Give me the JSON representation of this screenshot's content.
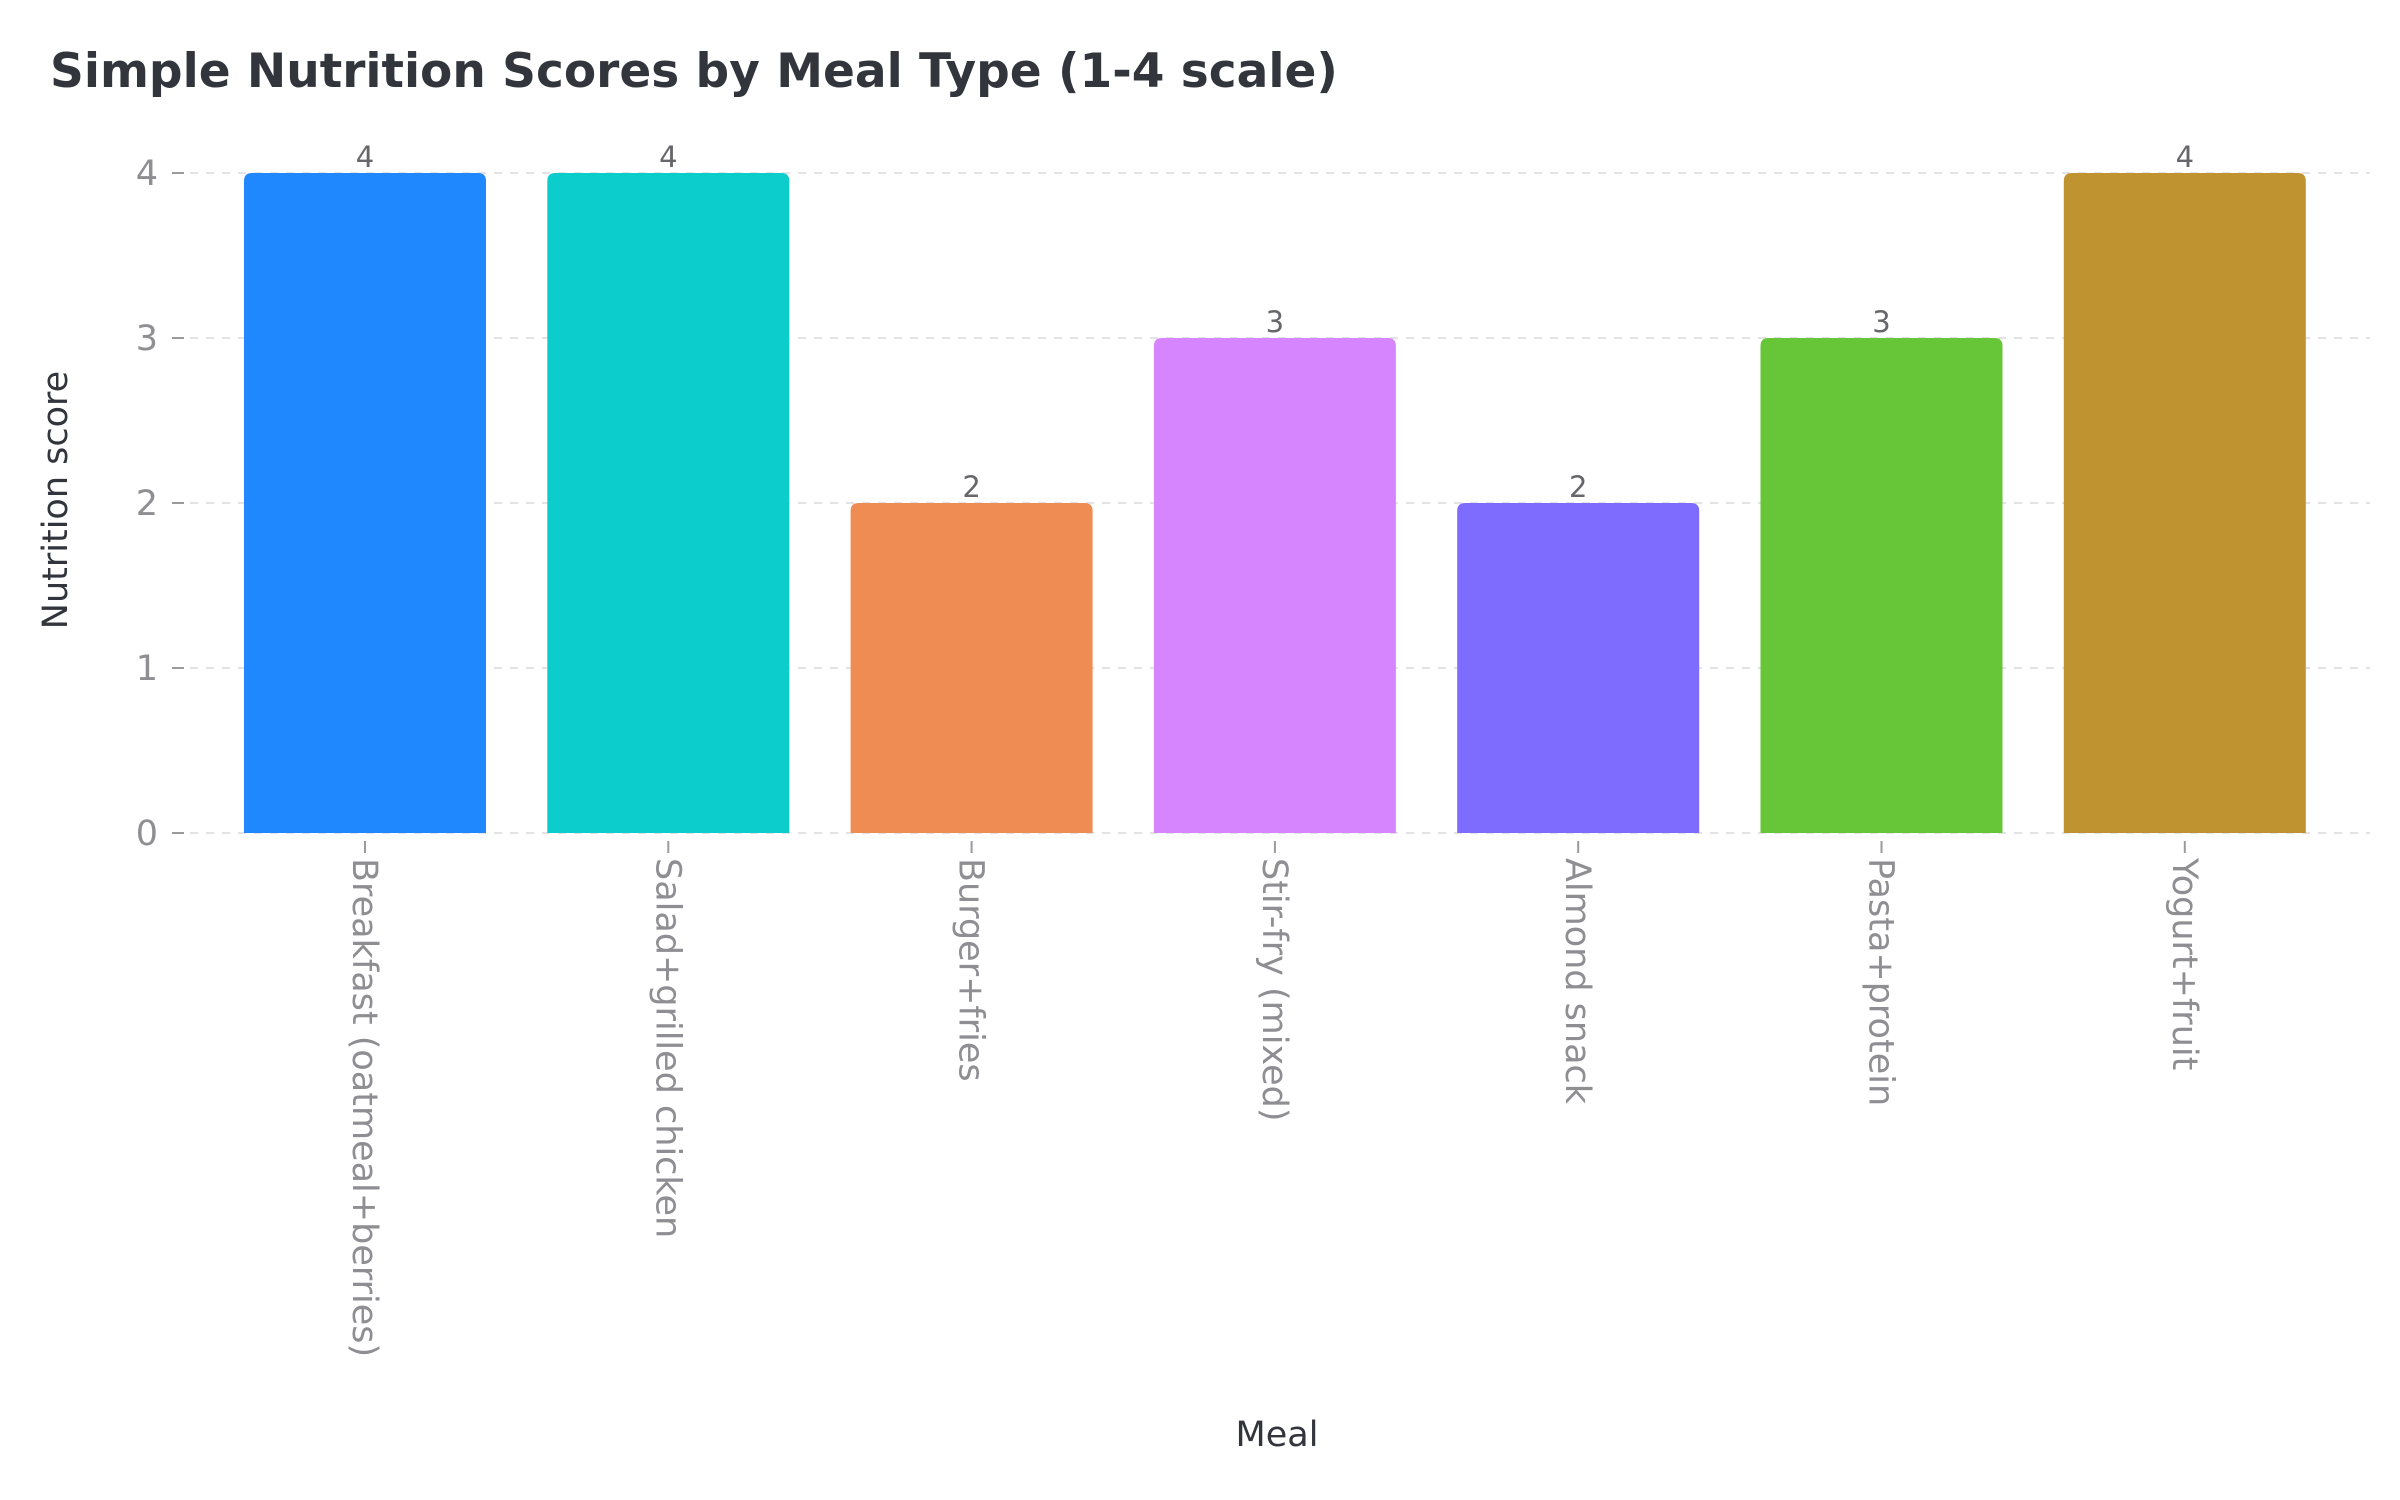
{
  "chart_data": {
    "type": "bar",
    "title": "Simple Nutrition Scores by Meal Type (1-4 scale)",
    "xlabel": "Meal",
    "ylabel": "Nutrition score",
    "categories": [
      "Breakfast (oatmeal+berries)",
      "Salad+grilled chicken",
      "Burger+fries",
      "Stir-fry (mixed)",
      "Almond snack",
      "Pasta+protein",
      "Yogurt+fruit"
    ],
    "values": [
      4,
      4,
      2,
      3,
      2,
      3,
      4
    ],
    "data_labels": [
      "4",
      "4",
      "2",
      "3",
      "2",
      "3",
      "4"
    ],
    "yticks": [
      0,
      1,
      2,
      3,
      4
    ],
    "ylim": [
      0,
      4
    ],
    "grid": true,
    "legend": "none",
    "colors": [
      "#1f88ff",
      "#0ccdcb",
      "#ef8c54",
      "#d785ff",
      "#7e6bff",
      "#67c638",
      "#c09331"
    ]
  }
}
